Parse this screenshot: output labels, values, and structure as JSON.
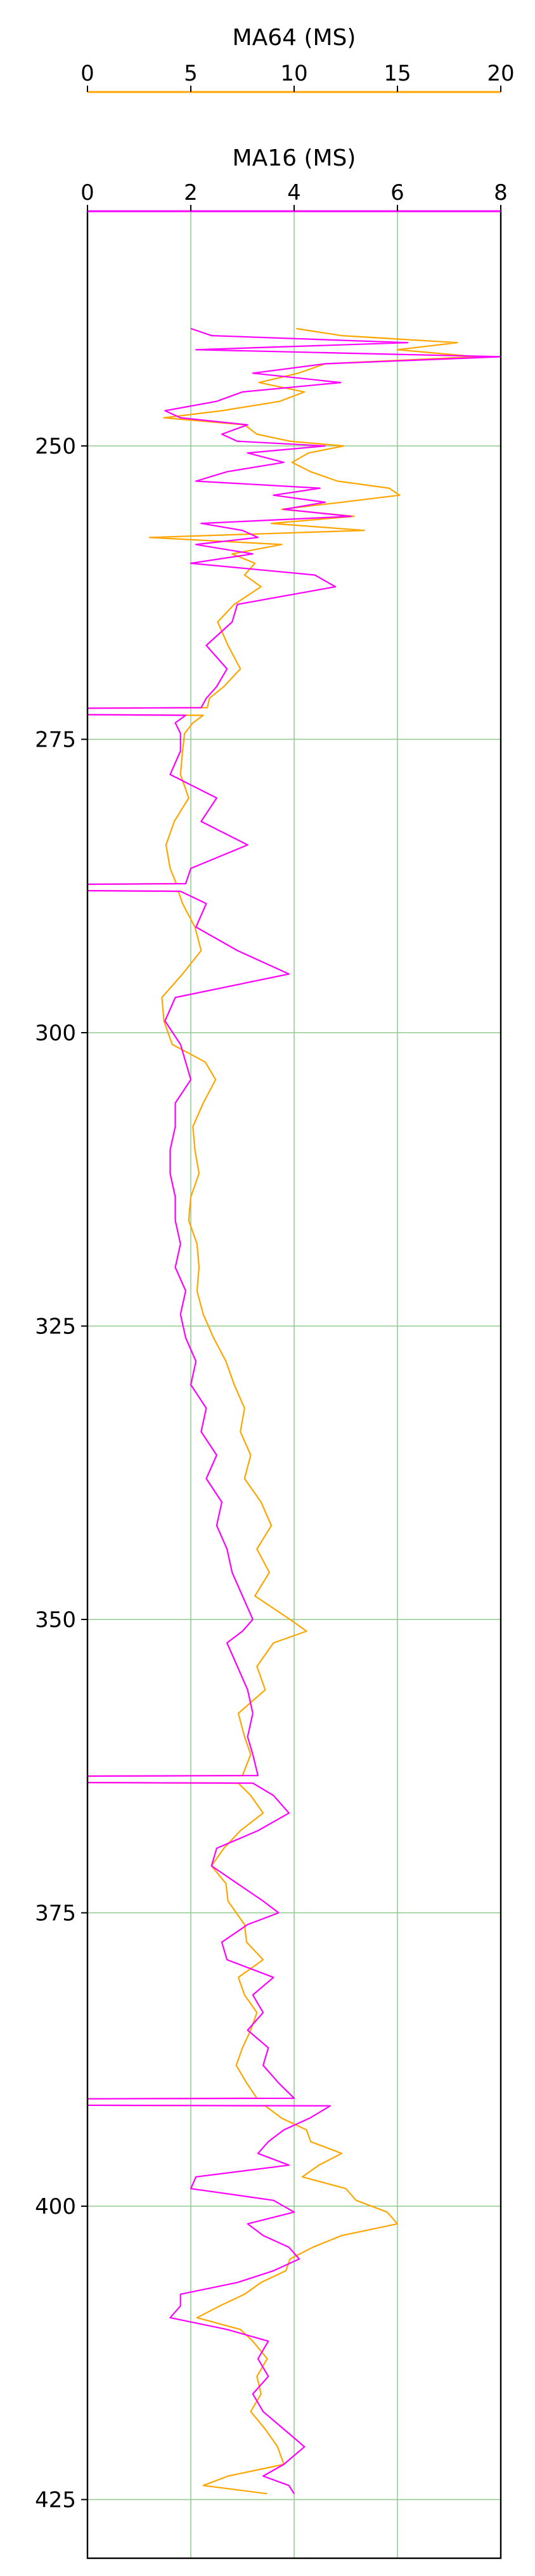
{
  "chart_data": {
    "type": "line",
    "y_axis": {
      "label": "",
      "ylim": [
        230,
        430
      ],
      "inverted": true,
      "ticks": [
        250,
        275,
        300,
        325,
        350,
        375,
        400,
        425
      ],
      "tick_labels": [
        "250",
        "275",
        "300",
        "325",
        "350",
        "375",
        "400",
        "425"
      ]
    },
    "x_axes": [
      {
        "key": "ma64",
        "label": "MA64 (MS)",
        "xlim": [
          0,
          20
        ],
        "ticks": [
          0,
          5,
          10,
          15,
          20
        ],
        "tick_labels": [
          "0",
          "5",
          "10",
          "15",
          "20"
        ],
        "color": "#FFA500",
        "position": "top-outer"
      },
      {
        "key": "ma16",
        "label": "MA16 (MS)",
        "xlim": [
          0,
          8
        ],
        "ticks": [
          0,
          2,
          4,
          6,
          8
        ],
        "tick_labels": [
          "0",
          "2",
          "4",
          "6",
          "8"
        ],
        "color": "#FF00FF",
        "position": "top-inner"
      }
    ],
    "grid": true,
    "grid_color": "#90C890",
    "series": [
      {
        "name": "MA64 (MS)",
        "axis": "ma64",
        "color": "#FFA500",
        "points": [
          [
            240.0,
            10.1
          ],
          [
            240.6,
            12.3
          ],
          [
            241.2,
            17.9
          ],
          [
            241.8,
            15.0
          ],
          [
            242.4,
            18.8
          ],
          [
            243.0,
            11.5
          ],
          [
            243.8,
            10.2
          ],
          [
            244.6,
            8.3
          ],
          [
            245.4,
            10.5
          ],
          [
            246.2,
            9.3
          ],
          [
            247.0,
            6.5
          ],
          [
            247.6,
            3.7
          ],
          [
            248.2,
            7.6
          ],
          [
            249.0,
            8.2
          ],
          [
            249.6,
            9.8
          ],
          [
            250.0,
            12.4
          ],
          [
            250.6,
            10.7
          ],
          [
            251.4,
            9.9
          ],
          [
            252.2,
            10.8
          ],
          [
            253.0,
            12.1
          ],
          [
            253.6,
            14.6
          ],
          [
            254.2,
            15.1
          ],
          [
            254.8,
            12.3
          ],
          [
            255.4,
            9.4
          ],
          [
            256.0,
            12.9
          ],
          [
            256.6,
            8.9
          ],
          [
            257.2,
            13.4
          ],
          [
            257.8,
            3.0
          ],
          [
            258.4,
            9.4
          ],
          [
            259.2,
            7.0
          ],
          [
            260.0,
            8.1
          ],
          [
            261.0,
            7.6
          ],
          [
            262.0,
            8.4
          ],
          [
            263.5,
            7.1
          ],
          [
            265.0,
            6.3
          ],
          [
            267.0,
            6.8
          ],
          [
            269.0,
            7.4
          ],
          [
            270.5,
            6.6
          ],
          [
            271.5,
            5.9
          ],
          [
            272.3,
            5.8
          ],
          [
            272.35,
            0.0
          ],
          [
            272.9,
            0.0
          ],
          [
            272.95,
            5.6
          ],
          [
            273.6,
            5.1
          ],
          [
            274.5,
            4.7
          ],
          [
            276.0,
            4.6
          ],
          [
            278.0,
            4.5
          ],
          [
            280.0,
            4.9
          ],
          [
            282.0,
            4.2
          ],
          [
            284.0,
            3.8
          ],
          [
            286.0,
            4.0
          ],
          [
            287.3,
            4.3
          ],
          [
            287.35,
            0.0
          ],
          [
            287.9,
            0.0
          ],
          [
            287.95,
            4.4
          ],
          [
            289.0,
            4.6
          ],
          [
            291.0,
            5.2
          ],
          [
            293.0,
            5.5
          ],
          [
            295.0,
            4.6
          ],
          [
            297.0,
            3.6
          ],
          [
            299.0,
            3.7
          ],
          [
            301.0,
            4.1
          ],
          [
            302.5,
            5.7
          ],
          [
            304.0,
            6.2
          ],
          [
            306.0,
            5.6
          ],
          [
            308.0,
            5.1
          ],
          [
            310.0,
            5.2
          ],
          [
            312.0,
            5.4
          ],
          [
            314.0,
            5.0
          ],
          [
            316.0,
            4.9
          ],
          [
            318.0,
            5.3
          ],
          [
            320.0,
            5.4
          ],
          [
            322.0,
            5.3
          ],
          [
            324.0,
            5.6
          ],
          [
            326.0,
            6.1
          ],
          [
            328.0,
            6.7
          ],
          [
            330.0,
            7.1
          ],
          [
            332.0,
            7.6
          ],
          [
            334.0,
            7.4
          ],
          [
            336.0,
            7.9
          ],
          [
            338.0,
            7.6
          ],
          [
            340.0,
            8.4
          ],
          [
            342.0,
            8.9
          ],
          [
            344.0,
            8.2
          ],
          [
            346.0,
            8.8
          ],
          [
            348.0,
            8.1
          ],
          [
            350.0,
            9.8
          ],
          [
            351.0,
            10.6
          ],
          [
            352.0,
            9.0
          ],
          [
            354.0,
            8.2
          ],
          [
            356.0,
            8.6
          ],
          [
            358.0,
            7.3
          ],
          [
            360.0,
            7.6
          ],
          [
            361.5,
            7.9
          ],
          [
            363.3,
            7.5
          ],
          [
            363.35,
            0.0
          ],
          [
            363.9,
            0.0
          ],
          [
            363.95,
            7.3
          ],
          [
            365.0,
            7.9
          ],
          [
            366.5,
            8.5
          ],
          [
            368.0,
            7.4
          ],
          [
            369.5,
            6.6
          ],
          [
            371.0,
            6.0
          ],
          [
            372.5,
            6.7
          ],
          [
            374.0,
            6.8
          ],
          [
            375.0,
            7.2
          ],
          [
            376.0,
            7.6
          ],
          [
            377.5,
            7.7
          ],
          [
            379.0,
            8.5
          ],
          [
            380.5,
            7.3
          ],
          [
            382.0,
            7.6
          ],
          [
            383.5,
            8.2
          ],
          [
            385.0,
            7.9
          ],
          [
            386.5,
            7.5
          ],
          [
            388.0,
            7.2
          ],
          [
            389.5,
            7.7
          ],
          [
            390.8,
            8.2
          ],
          [
            390.85,
            0.0
          ],
          [
            391.4,
            0.0
          ],
          [
            391.45,
            8.6
          ],
          [
            392.5,
            9.4
          ],
          [
            393.5,
            10.6
          ],
          [
            394.5,
            10.8
          ],
          [
            395.5,
            12.3
          ],
          [
            396.5,
            11.2
          ],
          [
            397.5,
            10.4
          ],
          [
            398.5,
            12.5
          ],
          [
            399.5,
            13.0
          ],
          [
            400.5,
            14.5
          ],
          [
            401.5,
            15.0
          ],
          [
            402.5,
            12.3
          ],
          [
            403.5,
            10.9
          ],
          [
            404.5,
            9.8
          ],
          [
            405.5,
            9.6
          ],
          [
            406.5,
            8.4
          ],
          [
            407.5,
            7.6
          ],
          [
            408.5,
            6.4
          ],
          [
            409.5,
            5.3
          ],
          [
            410.5,
            7.4
          ],
          [
            411.5,
            8.0
          ],
          [
            413.0,
            8.7
          ],
          [
            414.5,
            8.2
          ],
          [
            416.0,
            8.4
          ],
          [
            417.5,
            7.9
          ],
          [
            419.0,
            8.6
          ],
          [
            420.5,
            9.2
          ],
          [
            422.0,
            9.5
          ],
          [
            423.0,
            6.8
          ],
          [
            423.8,
            5.6
          ],
          [
            424.5,
            8.7
          ]
        ]
      },
      {
        "name": "MA16 (MS)",
        "axis": "ma16",
        "color": "#FF00FF",
        "points": [
          [
            240.0,
            2.0
          ],
          [
            240.6,
            2.4
          ],
          [
            241.2,
            6.2
          ],
          [
            241.8,
            2.1
          ],
          [
            242.4,
            8.0
          ],
          [
            243.0,
            4.6
          ],
          [
            243.8,
            3.2
          ],
          [
            244.6,
            4.9
          ],
          [
            245.4,
            3.0
          ],
          [
            246.2,
            2.5
          ],
          [
            247.0,
            1.5
          ],
          [
            247.6,
            1.8
          ],
          [
            248.2,
            3.1
          ],
          [
            249.0,
            2.6
          ],
          [
            249.6,
            2.9
          ],
          [
            250.0,
            4.6
          ],
          [
            250.6,
            3.1
          ],
          [
            251.4,
            3.8
          ],
          [
            252.2,
            2.7
          ],
          [
            253.0,
            2.1
          ],
          [
            253.6,
            4.5
          ],
          [
            254.2,
            3.6
          ],
          [
            254.8,
            4.6
          ],
          [
            255.4,
            3.8
          ],
          [
            256.0,
            5.1
          ],
          [
            256.6,
            2.2
          ],
          [
            257.2,
            3.0
          ],
          [
            257.8,
            3.3
          ],
          [
            258.4,
            2.1
          ],
          [
            259.2,
            3.2
          ],
          [
            260.0,
            2.0
          ],
          [
            261.0,
            4.4
          ],
          [
            262.0,
            4.8
          ],
          [
            263.5,
            2.9
          ],
          [
            265.0,
            2.8
          ],
          [
            267.0,
            2.3
          ],
          [
            269.0,
            2.7
          ],
          [
            270.5,
            2.5
          ],
          [
            271.5,
            2.3
          ],
          [
            272.3,
            2.2
          ],
          [
            272.35,
            0.0
          ],
          [
            272.9,
            0.0
          ],
          [
            272.95,
            1.9
          ],
          [
            273.6,
            1.7
          ],
          [
            274.5,
            1.8
          ],
          [
            276.0,
            1.8
          ],
          [
            278.0,
            1.6
          ],
          [
            280.0,
            2.5
          ],
          [
            282.0,
            2.2
          ],
          [
            284.0,
            3.1
          ],
          [
            286.0,
            2.0
          ],
          [
            287.3,
            1.9
          ],
          [
            287.35,
            0.0
          ],
          [
            287.9,
            0.0
          ],
          [
            287.95,
            1.8
          ],
          [
            289.0,
            2.3
          ],
          [
            291.0,
            2.1
          ],
          [
            293.0,
            2.9
          ],
          [
            295.0,
            3.9
          ],
          [
            297.0,
            1.7
          ],
          [
            299.0,
            1.5
          ],
          [
            301.0,
            1.8
          ],
          [
            302.5,
            1.9
          ],
          [
            304.0,
            2.0
          ],
          [
            306.0,
            1.7
          ],
          [
            308.0,
            1.7
          ],
          [
            310.0,
            1.6
          ],
          [
            312.0,
            1.6
          ],
          [
            314.0,
            1.7
          ],
          [
            316.0,
            1.7
          ],
          [
            318.0,
            1.8
          ],
          [
            320.0,
            1.7
          ],
          [
            322.0,
            1.9
          ],
          [
            324.0,
            1.8
          ],
          [
            326.0,
            1.9
          ],
          [
            328.0,
            2.1
          ],
          [
            330.0,
            2.0
          ],
          [
            332.0,
            2.3
          ],
          [
            334.0,
            2.2
          ],
          [
            336.0,
            2.5
          ],
          [
            338.0,
            2.3
          ],
          [
            340.0,
            2.6
          ],
          [
            342.0,
            2.5
          ],
          [
            344.0,
            2.7
          ],
          [
            346.0,
            2.8
          ],
          [
            348.0,
            3.0
          ],
          [
            350.0,
            3.2
          ],
          [
            351.0,
            3.0
          ],
          [
            352.0,
            2.7
          ],
          [
            354.0,
            2.9
          ],
          [
            356.0,
            3.1
          ],
          [
            358.0,
            3.2
          ],
          [
            360.0,
            3.1
          ],
          [
            361.5,
            3.2
          ],
          [
            363.3,
            3.3
          ],
          [
            363.35,
            0.0
          ],
          [
            363.9,
            0.0
          ],
          [
            363.95,
            3.2
          ],
          [
            365.0,
            3.6
          ],
          [
            366.5,
            3.9
          ],
          [
            368.0,
            3.3
          ],
          [
            369.5,
            2.5
          ],
          [
            371.0,
            2.4
          ],
          [
            372.5,
            2.9
          ],
          [
            374.0,
            3.4
          ],
          [
            375.0,
            3.7
          ],
          [
            376.0,
            3.1
          ],
          [
            377.5,
            2.6
          ],
          [
            379.0,
            2.7
          ],
          [
            380.5,
            3.6
          ],
          [
            382.0,
            3.2
          ],
          [
            383.5,
            3.4
          ],
          [
            385.0,
            3.1
          ],
          [
            386.5,
            3.5
          ],
          [
            388.0,
            3.4
          ],
          [
            389.5,
            3.7
          ],
          [
            390.8,
            4.0
          ],
          [
            390.85,
            0.0
          ],
          [
            391.4,
            0.0
          ],
          [
            391.45,
            4.7
          ],
          [
            392.5,
            4.3
          ],
          [
            393.5,
            3.8
          ],
          [
            394.5,
            3.5
          ],
          [
            395.5,
            3.3
          ],
          [
            396.5,
            3.9
          ],
          [
            397.5,
            2.1
          ],
          [
            398.5,
            2.0
          ],
          [
            399.5,
            3.6
          ],
          [
            400.5,
            4.0
          ],
          [
            401.5,
            3.1
          ],
          [
            402.5,
            3.4
          ],
          [
            403.5,
            3.9
          ],
          [
            404.5,
            4.1
          ],
          [
            405.5,
            3.6
          ],
          [
            406.5,
            2.9
          ],
          [
            407.5,
            1.8
          ],
          [
            408.5,
            1.8
          ],
          [
            409.5,
            1.6
          ],
          [
            410.5,
            2.7
          ],
          [
            411.5,
            3.5
          ],
          [
            413.0,
            3.3
          ],
          [
            414.5,
            3.5
          ],
          [
            416.0,
            3.2
          ],
          [
            417.5,
            3.4
          ],
          [
            419.0,
            3.8
          ],
          [
            420.5,
            4.2
          ],
          [
            422.0,
            3.8
          ],
          [
            423.0,
            3.4
          ],
          [
            423.8,
            3.9
          ],
          [
            424.5,
            4.0
          ]
        ]
      }
    ]
  }
}
